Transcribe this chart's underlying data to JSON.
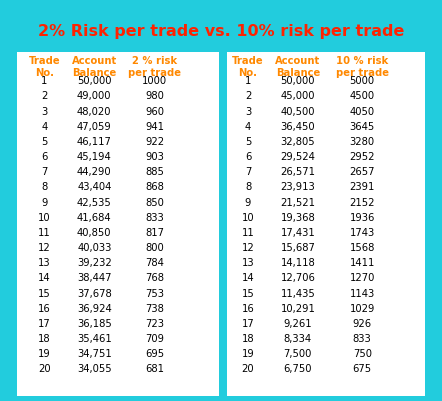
{
  "title": "2% Risk per trade vs. 10% risk per trade",
  "title_color": "#ff2200",
  "bg_outer": "#22ccdd",
  "bg_inner": "#ffffff",
  "header_color": "#ff8800",
  "data_color": "#000000",
  "left_headers": [
    "Trade\nNo.",
    "Account\nBalance",
    "2 % risk\nper trade"
  ],
  "right_headers": [
    "Trade\nNo.",
    "Account\nBalance",
    "10 % risk\nper trade"
  ],
  "left_trade_no": [
    1,
    2,
    3,
    4,
    5,
    6,
    7,
    8,
    9,
    10,
    11,
    12,
    13,
    14,
    15,
    16,
    17,
    18,
    19,
    20
  ],
  "left_balance": [
    "50,000",
    "49,000",
    "48,020",
    "47,059",
    "46,117",
    "45,194",
    "44,290",
    "43,404",
    "42,535",
    "41,684",
    "40,850",
    "40,033",
    "39,232",
    "38,447",
    "37,678",
    "36,924",
    "36,185",
    "35,461",
    "34,751",
    "34,055"
  ],
  "left_risk": [
    "1000",
    "980",
    "960",
    "941",
    "922",
    "903",
    "885",
    "868",
    "850",
    "833",
    "817",
    "800",
    "784",
    "768",
    "753",
    "738",
    "723",
    "709",
    "695",
    "681"
  ],
  "right_trade_no": [
    1,
    2,
    3,
    4,
    5,
    6,
    7,
    8,
    9,
    10,
    11,
    12,
    13,
    14,
    15,
    16,
    17,
    18,
    19,
    20
  ],
  "right_balance": [
    "50,000",
    "45,000",
    "40,500",
    "36,450",
    "32,805",
    "29,524",
    "26,571",
    "23,913",
    "21,521",
    "19,368",
    "17,431",
    "15,687",
    "14,118",
    "12,706",
    "11,435",
    "10,291",
    "9,261",
    "8,334",
    "7,500",
    "6,750"
  ],
  "right_risk": [
    "5000",
    "4500",
    "4050",
    "3645",
    "3280",
    "2952",
    "2657",
    "2391",
    "2152",
    "1936",
    "1743",
    "1568",
    "1411",
    "1270",
    "1143",
    "1029",
    "926",
    "833",
    "750",
    "675"
  ]
}
